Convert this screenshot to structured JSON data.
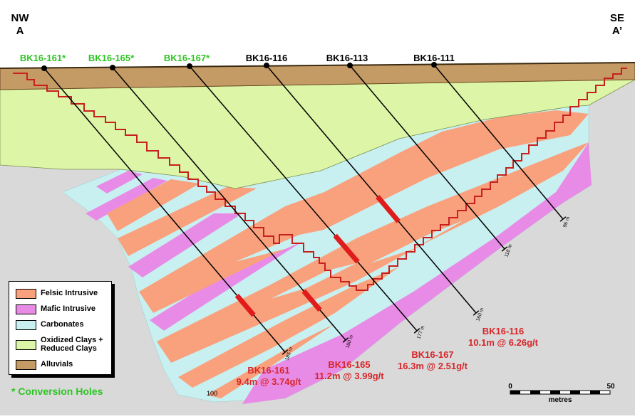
{
  "section": {
    "left_label": [
      "NW",
      "A"
    ],
    "right_label": [
      "SE",
      "A’"
    ]
  },
  "holes": [
    {
      "name": "BK16-161*",
      "conversion": true,
      "depth": "185 m"
    },
    {
      "name": "BK16-165*",
      "conversion": true,
      "depth": "180 m"
    },
    {
      "name": "BK16-167*",
      "conversion": true,
      "depth": "177 m"
    },
    {
      "name": "BK16-116",
      "conversion": false,
      "depth": "160 m"
    },
    {
      "name": "BK16-113",
      "conversion": false,
      "depth": "118 m"
    },
    {
      "name": "BK16-111",
      "conversion": false,
      "depth": "96 m"
    }
  ],
  "intercepts": [
    {
      "hole": "BK16-161",
      "result": "9.4m @ 3.74g/t"
    },
    {
      "hole": "BK16-165",
      "result": "11.2m @ 3.99g/t"
    },
    {
      "hole": "BK16-167",
      "result": "16.3m @ 2.51g/t"
    },
    {
      "hole": "BK16-116",
      "result": "10.1m @ 6.26g/t"
    }
  ],
  "legend": [
    {
      "label": "Felsic Intrusive",
      "color": "#f9a07c"
    },
    {
      "label": "Mafic Intrusive",
      "color": "#e88be6"
    },
    {
      "label": "Carbonates",
      "color": "#c8f0f0"
    },
    {
      "label": "Oxidized Clays +",
      "label2": "Reduced Clays",
      "color": "#dcf5a6"
    },
    {
      "label": "Alluvials",
      "color": "#c49a65"
    }
  ],
  "note": "* Conversion Holes",
  "scale": {
    "start": "0",
    "end": "50",
    "unit": "metres"
  },
  "elevation_label": "100",
  "colors": {
    "conversion_text": "#2ec424",
    "intercept_text": "#d8262a",
    "pit_outline": "#c8201f",
    "mineralized": "#e01b1b",
    "background": "#d9d9d9"
  }
}
